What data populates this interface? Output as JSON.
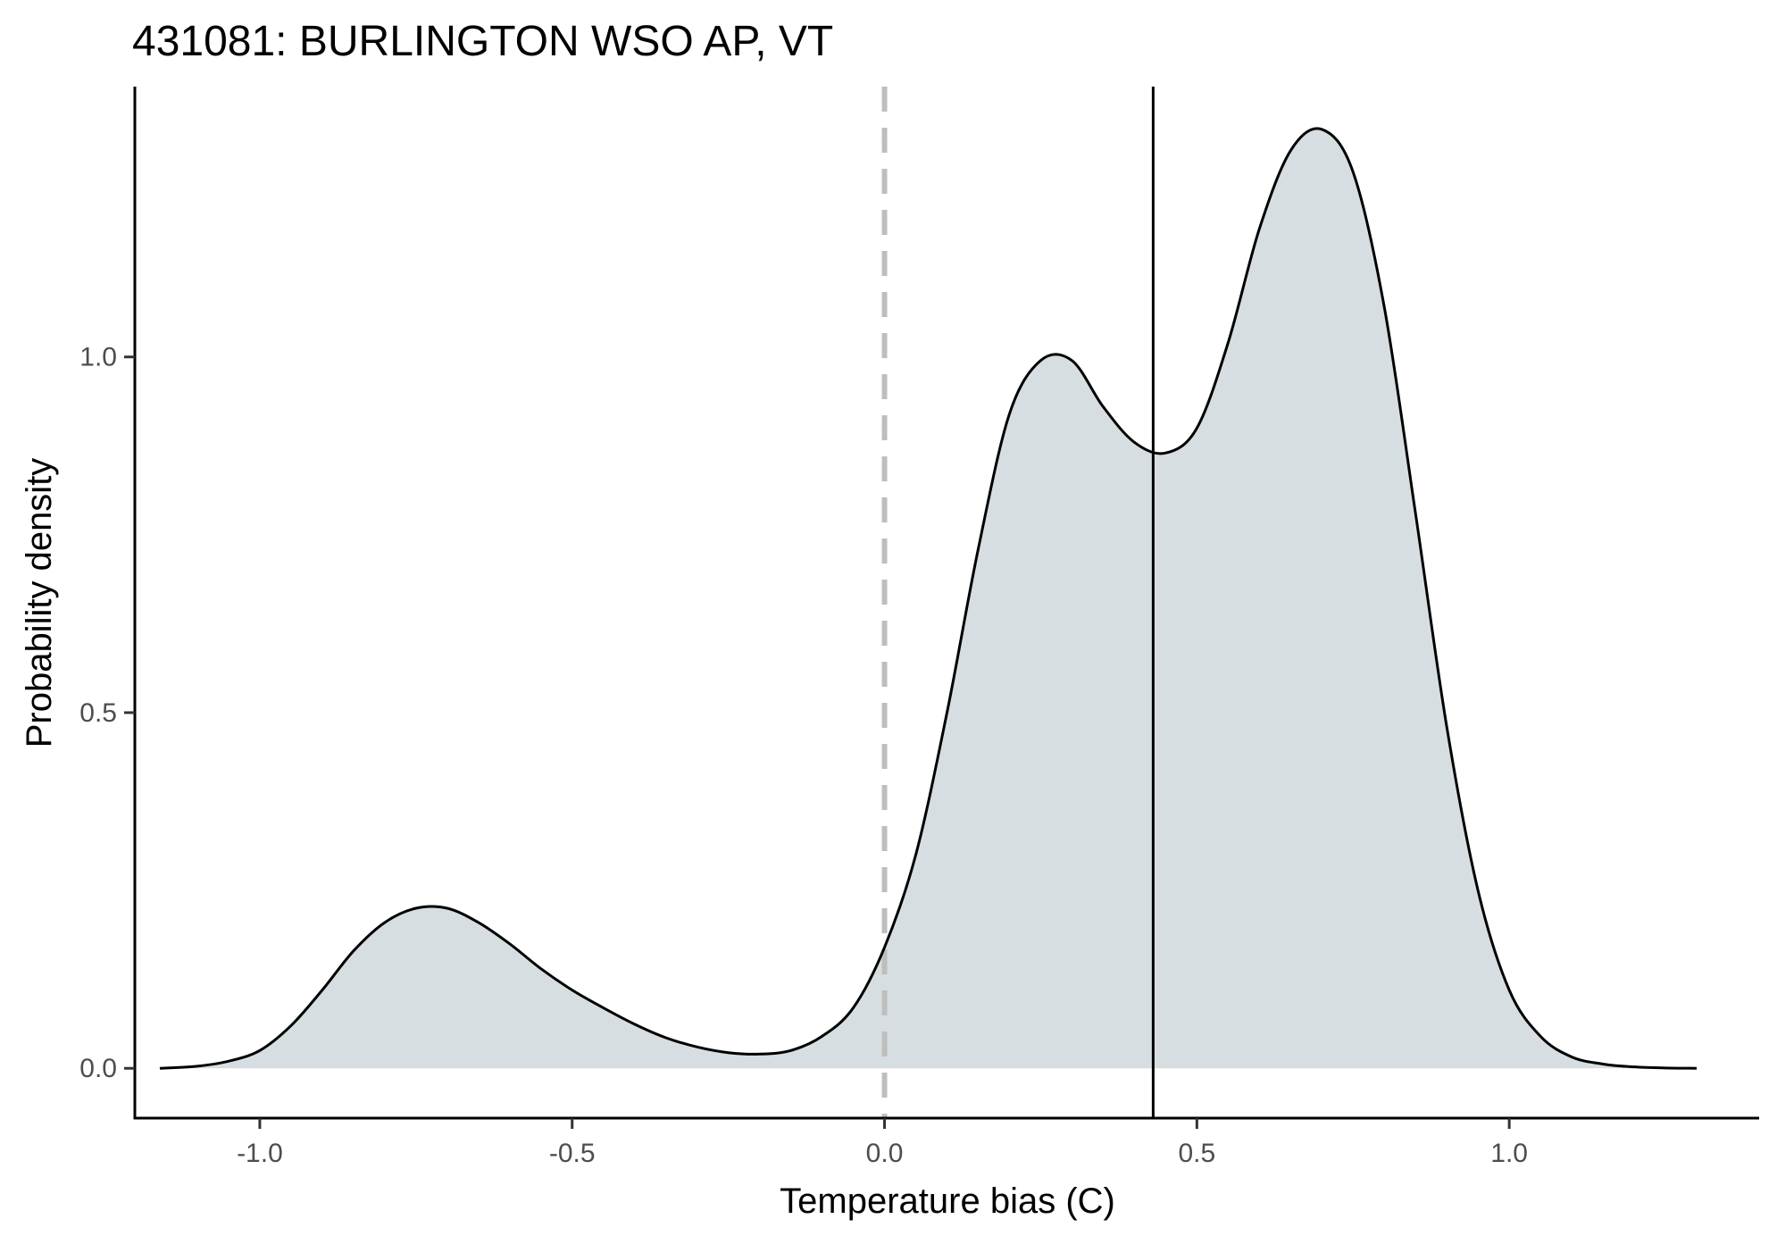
{
  "chart_data": {
    "type": "area",
    "title": "431081: BURLINGTON WSO AP, VT",
    "xlabel": "Temperature bias (C)",
    "ylabel": "Probability density",
    "xlim": [
      -1.2,
      1.4
    ],
    "ylim": [
      -0.07,
      1.38
    ],
    "x_ticks": [
      -1.0,
      -0.5,
      0.0,
      0.5,
      1.0
    ],
    "x_tick_labels": [
      "-1.0",
      "-0.5",
      "0.0",
      "0.5",
      "1.0"
    ],
    "y_ticks": [
      0.0,
      0.5,
      1.0
    ],
    "y_tick_labels": [
      "0.0",
      "0.5",
      "1.0"
    ],
    "grid": false,
    "legend": "none",
    "fill_color": "#d7dee1",
    "line_color": "#000000",
    "reference_lines": [
      {
        "axis": "x",
        "value": 0.0,
        "style": "dashed",
        "color": "#bebebe"
      },
      {
        "axis": "x",
        "value": 0.43,
        "style": "solid",
        "color": "#000000"
      }
    ],
    "series": [
      {
        "x": [
          -1.16,
          -1.1,
          -1.05,
          -1.0,
          -0.95,
          -0.9,
          -0.85,
          -0.8,
          -0.75,
          -0.7,
          -0.65,
          -0.6,
          -0.55,
          -0.5,
          -0.45,
          -0.4,
          -0.35,
          -0.3,
          -0.25,
          -0.2,
          -0.15,
          -0.1,
          -0.05,
          0.0,
          0.05,
          0.1,
          0.15,
          0.2,
          0.25,
          0.3,
          0.35,
          0.4,
          0.45,
          0.5,
          0.55,
          0.6,
          0.65,
          0.7,
          0.75,
          0.8,
          0.85,
          0.9,
          0.95,
          1.0,
          1.05,
          1.1,
          1.15,
          1.2,
          1.25,
          1.3
        ],
        "y": [
          0.0,
          0.003,
          0.01,
          0.025,
          0.06,
          0.11,
          0.165,
          0.205,
          0.225,
          0.225,
          0.205,
          0.175,
          0.14,
          0.11,
          0.085,
          0.062,
          0.043,
          0.03,
          0.022,
          0.02,
          0.025,
          0.045,
          0.085,
          0.17,
          0.3,
          0.5,
          0.73,
          0.92,
          0.995,
          0.995,
          0.93,
          0.88,
          0.865,
          0.9,
          1.02,
          1.18,
          1.29,
          1.32,
          1.26,
          1.07,
          0.78,
          0.48,
          0.25,
          0.11,
          0.045,
          0.016,
          0.006,
          0.002,
          0.0005,
          0.0
        ]
      }
    ]
  }
}
